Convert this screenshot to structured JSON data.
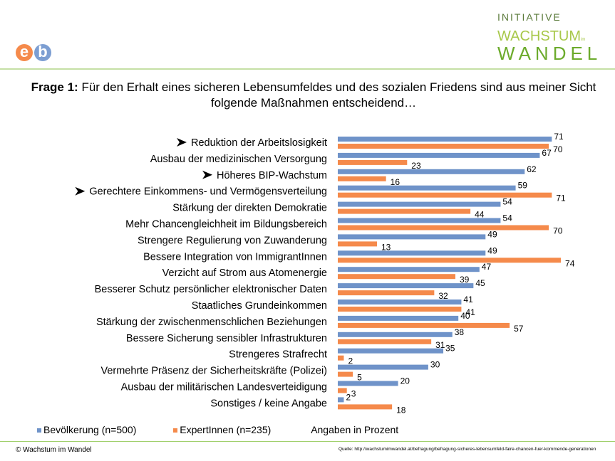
{
  "header": {
    "logo_left": "eb",
    "brand_line1": "INITIATIVE",
    "brand_line2": "WACHSTUM",
    "brand_small": "im",
    "brand_line3": "WANDEL"
  },
  "title": {
    "bold": "Frage 1:",
    "text": " Für den Erhalt eines sicheren Lebensumfeldes und des sozialen Friedens sind aus meiner Sicht folgende Maßnahmen entscheidend…"
  },
  "chart_data": {
    "type": "bar",
    "orientation": "horizontal",
    "categories": [
      "Reduktion der Arbeitslosigkeit",
      "Ausbau der medizinischen Versorgung",
      "Höheres BIP-Wachstum",
      "Gerechtere Einkommens- und Vermögensverteilung",
      "Stärkung der direkten Demokratie",
      "Mehr Chancengleichheit im Bildungsbereich",
      "Strengere Regulierung von Zuwanderung",
      "Bessere Integration von ImmigrantInnen",
      "Verzicht auf Strom aus Atomenergie",
      "Besserer Schutz persönlicher elektronischer Daten",
      "Staatliches Grundeinkommen",
      "Stärkung der zwischenmenschlichen Beziehungen",
      "Bessere Sicherung sensibler Infrastrukturen",
      "Strengeres Strafrecht",
      "Vermehrte Präsenz der Sicherheitskräfte (Polizei)",
      "Ausbau  der militärischen Landesverteidigung",
      "Sonstiges / keine Angabe"
    ],
    "arrow_marked": [
      true,
      false,
      true,
      true,
      false,
      false,
      false,
      false,
      false,
      false,
      false,
      false,
      false,
      false,
      false,
      false,
      false
    ],
    "series": [
      {
        "name": "Bevölkerung (n=500)",
        "color": "#6f93c9",
        "values": [
          71,
          67,
          62,
          59,
          54,
          54,
          49,
          49,
          47,
          45,
          41,
          40,
          38,
          35,
          30,
          20,
          2
        ]
      },
      {
        "name": "ExpertInnen (n=235)",
        "color": "#f58a4b",
        "values": [
          70,
          23,
          16,
          71,
          44,
          70,
          13,
          74,
          39,
          32,
          41,
          57,
          31,
          2,
          5,
          3,
          18
        ]
      }
    ],
    "unit_note": "Angaben in Prozent",
    "xlim": [
      0,
      100
    ],
    "grid": false,
    "legend": "bottom-left"
  },
  "footer": {
    "left": "© Wachstum im Wandel",
    "right": "Quelle: http://wachstumimwandel.at/befragung/befragung-sicheres-lebensumfeld-faire-chancen-fuer-kommende-generationen"
  }
}
